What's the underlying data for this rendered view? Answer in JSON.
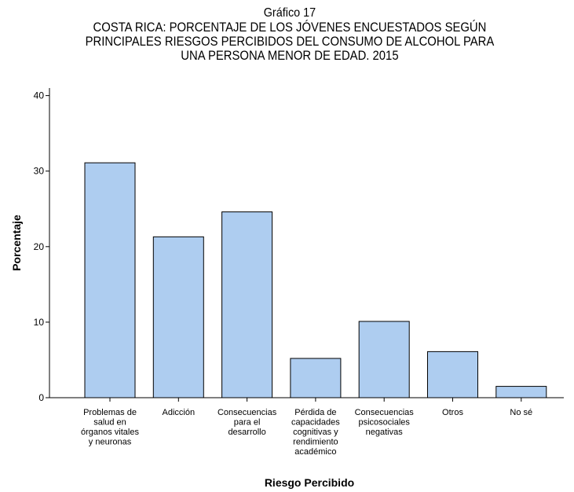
{
  "chart_data": {
    "type": "bar",
    "title_lines": [
      "Gráfico 17",
      "COSTA RICA: PORCENTAJE DE LOS JÓVENES ENCUESTADOS SEGÚN",
      "PRINCIPALES RIESGOS PERCIBIDOS DEL CONSUMO DE ALCOHOL PARA",
      "UNA PERSONA MENOR DE EDAD. 2015"
    ],
    "xlabel": "Riesgo Percibido",
    "ylabel": "Porcentaje",
    "ylim": [
      0,
      41
    ],
    "yticks": [
      0,
      10,
      20,
      30,
      40
    ],
    "categories": [
      [
        "Problemas de",
        "salud en",
        "órganos vitales",
        "y neuronas"
      ],
      [
        "Adicción"
      ],
      [
        "Consecuencias",
        "para el",
        "desarrollo"
      ],
      [
        "Pérdida de",
        "capacidades",
        "cognitivas y",
        "rendimiento",
        "académico"
      ],
      [
        "Consecuencias",
        "psicosociales",
        "negativas"
      ],
      [
        "Otros"
      ],
      [
        "No sé"
      ]
    ],
    "values": [
      31.1,
      21.3,
      24.6,
      5.2,
      10.1,
      6.1,
      1.5
    ],
    "bar_color": "#aecdf0",
    "bar_stroke": "#000000",
    "grid": false
  }
}
